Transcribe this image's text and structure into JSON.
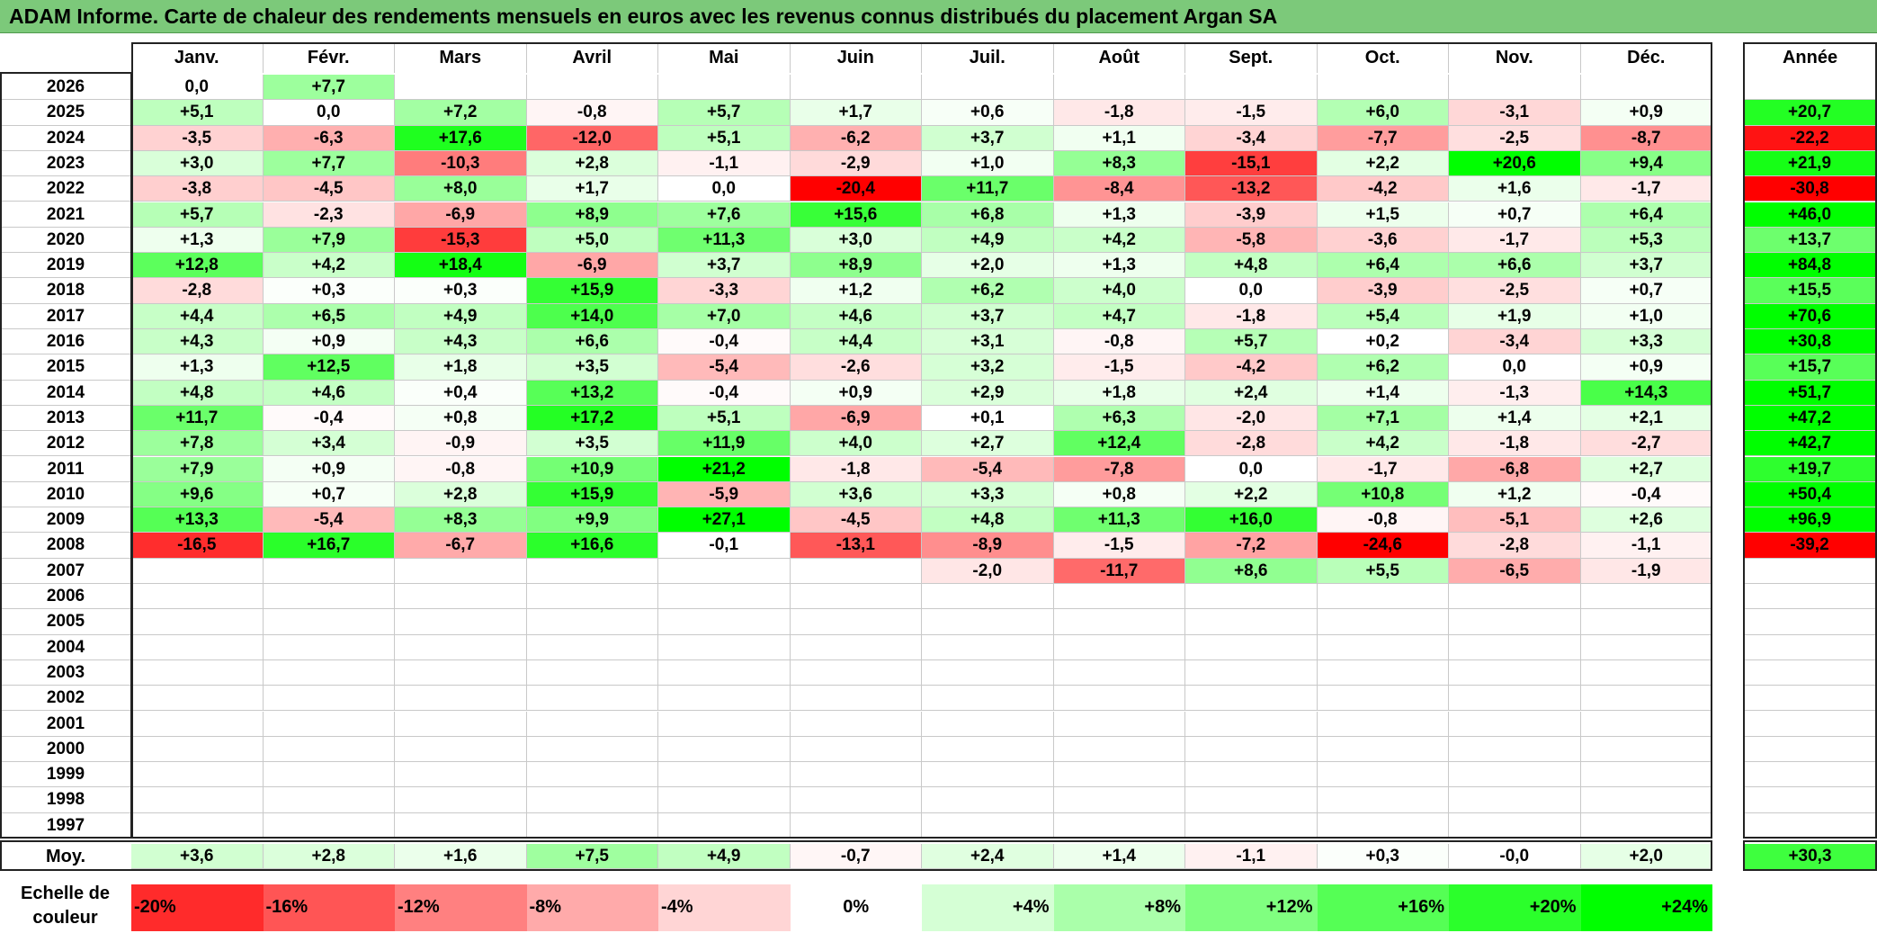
{
  "title": "ADAM Informe. Carte de chaleur des rendements mensuels en euros avec les revenus connus distribués du placement Argan SA",
  "colors": {
    "title_bar": "#7cc97a",
    "negative_max": "#ff0000",
    "positive_max": "#00ff00",
    "neutral": "#ffffff"
  },
  "chart_data": {
    "type": "heatmap",
    "title": "ADAM Informe. Carte de chaleur des rendements mensuels en euros avec les revenus connus distribués du placement Argan SA",
    "months": [
      "Janv.",
      "Févr.",
      "Mars",
      "Avril",
      "Mai",
      "Juin",
      "Juil.",
      "Août",
      "Sept.",
      "Oct.",
      "Nov.",
      "Déc."
    ],
    "year_header": "Année",
    "rows": [
      {
        "year": "2026",
        "values": [
          "0,0",
          "+7,7",
          "",
          "",
          "",
          "",
          "",
          "",
          "",
          "",
          "",
          ""
        ],
        "annual": ""
      },
      {
        "year": "2025",
        "values": [
          "+5,1",
          "0,0",
          "+7,2",
          "-0,8",
          "+5,7",
          "+1,7",
          "+0,6",
          "-1,8",
          "-1,5",
          "+6,0",
          "-3,1",
          "+0,9"
        ],
        "annual": "+20,7"
      },
      {
        "year": "2024",
        "values": [
          "-3,5",
          "-6,3",
          "+17,6",
          "-12,0",
          "+5,1",
          "-6,2",
          "+3,7",
          "+1,1",
          "-3,4",
          "-7,7",
          "-2,5",
          "-8,7"
        ],
        "annual": "-22,2"
      },
      {
        "year": "2023",
        "values": [
          "+3,0",
          "+7,7",
          "-10,3",
          "+2,8",
          "-1,1",
          "-2,9",
          "+1,0",
          "+8,3",
          "-15,1",
          "+2,2",
          "+20,6",
          "+9,4"
        ],
        "annual": "+21,9"
      },
      {
        "year": "2022",
        "values": [
          "-3,8",
          "-4,5",
          "+8,0",
          "+1,7",
          "0,0",
          "-20,4",
          "+11,7",
          "-8,4",
          "-13,2",
          "-4,2",
          "+1,6",
          "-1,7"
        ],
        "annual": "-30,8"
      },
      {
        "year": "2021",
        "values": [
          "+5,7",
          "-2,3",
          "-6,9",
          "+8,9",
          "+7,6",
          "+15,6",
          "+6,8",
          "+1,3",
          "-3,9",
          "+1,5",
          "+0,7",
          "+6,4"
        ],
        "annual": "+46,0"
      },
      {
        "year": "2020",
        "values": [
          "+1,3",
          "+7,9",
          "-15,3",
          "+5,0",
          "+11,3",
          "+3,0",
          "+4,9",
          "+4,2",
          "-5,8",
          "-3,6",
          "-1,7",
          "+5,3"
        ],
        "annual": "+13,7"
      },
      {
        "year": "2019",
        "values": [
          "+12,8",
          "+4,2",
          "+18,4",
          "-6,9",
          "+3,7",
          "+8,9",
          "+2,0",
          "+1,3",
          "+4,8",
          "+6,4",
          "+6,6",
          "+3,7"
        ],
        "annual": "+84,8"
      },
      {
        "year": "2018",
        "values": [
          "-2,8",
          "+0,3",
          "+0,3",
          "+15,9",
          "-3,3",
          "+1,2",
          "+6,2",
          "+4,0",
          "0,0",
          "-3,9",
          "-2,5",
          "+0,7"
        ],
        "annual": "+15,5"
      },
      {
        "year": "2017",
        "values": [
          "+4,4",
          "+6,5",
          "+4,9",
          "+14,0",
          "+7,0",
          "+4,6",
          "+3,7",
          "+4,7",
          "-1,8",
          "+5,4",
          "+1,9",
          "+1,0"
        ],
        "annual": "+70,6"
      },
      {
        "year": "2016",
        "values": [
          "+4,3",
          "+0,9",
          "+4,3",
          "+6,6",
          "-0,4",
          "+4,4",
          "+3,1",
          "-0,8",
          "+5,7",
          "+0,2",
          "-3,4",
          "+3,3"
        ],
        "annual": "+30,8"
      },
      {
        "year": "2015",
        "values": [
          "+1,3",
          "+12,5",
          "+1,8",
          "+3,5",
          "-5,4",
          "-2,6",
          "+3,2",
          "-1,5",
          "-4,2",
          "+6,2",
          "0,0",
          "+0,9"
        ],
        "annual": "+15,7"
      },
      {
        "year": "2014",
        "values": [
          "+4,8",
          "+4,6",
          "+0,4",
          "+13,2",
          "-0,4",
          "+0,9",
          "+2,9",
          "+1,8",
          "+2,4",
          "+1,4",
          "-1,3",
          "+14,3"
        ],
        "annual": "+51,7"
      },
      {
        "year": "2013",
        "values": [
          "+11,7",
          "-0,4",
          "+0,8",
          "+17,2",
          "+5,1",
          "-6,9",
          "+0,1",
          "+6,3",
          "-2,0",
          "+7,1",
          "+1,4",
          "+2,1"
        ],
        "annual": "+47,2"
      },
      {
        "year": "2012",
        "values": [
          "+7,8",
          "+3,4",
          "-0,9",
          "+3,5",
          "+11,9",
          "+4,0",
          "+2,7",
          "+12,4",
          "-2,8",
          "+4,2",
          "-1,8",
          "-2,7"
        ],
        "annual": "+42,7"
      },
      {
        "year": "2011",
        "values": [
          "+7,9",
          "+0,9",
          "-0,8",
          "+10,9",
          "+21,2",
          "-1,8",
          "-5,4",
          "-7,8",
          "0,0",
          "-1,7",
          "-6,8",
          "+2,7"
        ],
        "annual": "+19,7"
      },
      {
        "year": "2010",
        "values": [
          "+9,6",
          "+0,7",
          "+2,8",
          "+15,9",
          "-5,9",
          "+3,6",
          "+3,3",
          "+0,8",
          "+2,2",
          "+10,8",
          "+1,2",
          "-0,4"
        ],
        "annual": "+50,4"
      },
      {
        "year": "2009",
        "values": [
          "+13,3",
          "-5,4",
          "+8,3",
          "+9,9",
          "+27,1",
          "-4,5",
          "+4,8",
          "+11,3",
          "+16,0",
          "-0,8",
          "-5,1",
          "+2,6"
        ],
        "annual": "+96,9"
      },
      {
        "year": "2008",
        "values": [
          "-16,5",
          "+16,7",
          "-6,7",
          "+16,6",
          "-0,1",
          "-13,1",
          "-8,9",
          "-1,5",
          "-7,2",
          "-24,6",
          "-2,8",
          "-1,1"
        ],
        "annual": "-39,2"
      },
      {
        "year": "2007",
        "values": [
          "",
          "",
          "",
          "",
          "",
          "",
          "-2,0",
          "-11,7",
          "+8,6",
          "+5,5",
          "-6,5",
          "-1,9"
        ],
        "annual": ""
      },
      {
        "year": "2006",
        "values": [
          "",
          "",
          "",
          "",
          "",
          "",
          "",
          "",
          "",
          "",
          "",
          ""
        ],
        "annual": ""
      },
      {
        "year": "2005",
        "values": [
          "",
          "",
          "",
          "",
          "",
          "",
          "",
          "",
          "",
          "",
          "",
          ""
        ],
        "annual": ""
      },
      {
        "year": "2004",
        "values": [
          "",
          "",
          "",
          "",
          "",
          "",
          "",
          "",
          "",
          "",
          "",
          ""
        ],
        "annual": ""
      },
      {
        "year": "2003",
        "values": [
          "",
          "",
          "",
          "",
          "",
          "",
          "",
          "",
          "",
          "",
          "",
          ""
        ],
        "annual": ""
      },
      {
        "year": "2002",
        "values": [
          "",
          "",
          "",
          "",
          "",
          "",
          "",
          "",
          "",
          "",
          "",
          ""
        ],
        "annual": ""
      },
      {
        "year": "2001",
        "values": [
          "",
          "",
          "",
          "",
          "",
          "",
          "",
          "",
          "",
          "",
          "",
          ""
        ],
        "annual": ""
      },
      {
        "year": "2000",
        "values": [
          "",
          "",
          "",
          "",
          "",
          "",
          "",
          "",
          "",
          "",
          "",
          ""
        ],
        "annual": ""
      },
      {
        "year": "1999",
        "values": [
          "",
          "",
          "",
          "",
          "",
          "",
          "",
          "",
          "",
          "",
          "",
          ""
        ],
        "annual": ""
      },
      {
        "year": "1998",
        "values": [
          "",
          "",
          "",
          "",
          "",
          "",
          "",
          "",
          "",
          "",
          "",
          ""
        ],
        "annual": ""
      },
      {
        "year": "1997",
        "values": [
          "",
          "",
          "",
          "",
          "",
          "",
          "",
          "",
          "",
          "",
          "",
          ""
        ],
        "annual": ""
      }
    ],
    "average": {
      "label": "Moy.",
      "values": [
        "+3,6",
        "+2,8",
        "+1,6",
        "+7,5",
        "+4,9",
        "-0,7",
        "+2,4",
        "+1,4",
        "-1,1",
        "+0,3",
        "-0,0",
        "+2,0"
      ],
      "annual": "+30,3"
    },
    "color_scale": {
      "label": "Echelle de couleur",
      "steps": [
        "-20%",
        "-16%",
        "-12%",
        "-8%",
        "-4%",
        "0%",
        "+4%",
        "+8%",
        "+12%",
        "+16%",
        "+20%",
        "+24%"
      ]
    }
  }
}
